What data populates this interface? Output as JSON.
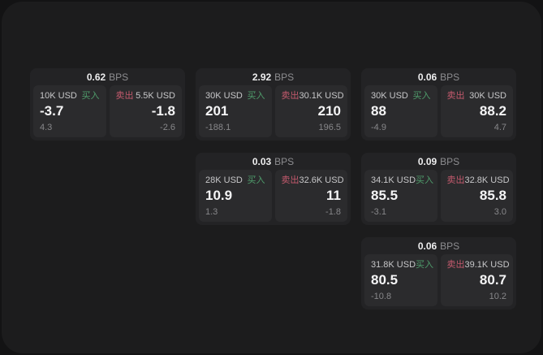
{
  "labels": {
    "bps_unit": "BPS",
    "buy": "买入",
    "sell": "卖出"
  },
  "colors": {
    "page_bg": "#131314",
    "panel_bg": "#1c1c1d",
    "card_bg": "#232325",
    "cell_bg": "#2b2b2d",
    "buy_green": "#4f9c6b",
    "sell_red": "#c45a6d"
  },
  "cards": [
    {
      "row": 1,
      "col": 1,
      "bps": "0.62",
      "buy": {
        "amount": "10K USD",
        "value": "-3.7",
        "sub": "4.3"
      },
      "sell": {
        "amount": "5.5K USD",
        "value": "-1.8",
        "sub": "-2.6"
      }
    },
    {
      "row": 1,
      "col": 2,
      "bps": "2.92",
      "buy": {
        "amount": "30K USD",
        "value": "201",
        "sub": "-188.1"
      },
      "sell": {
        "amount": "30.1K USD",
        "value": "210",
        "sub": "196.5"
      }
    },
    {
      "row": 1,
      "col": 3,
      "bps": "0.06",
      "buy": {
        "amount": "30K USD",
        "value": "88",
        "sub": "-4.9"
      },
      "sell": {
        "amount": "30K USD",
        "value": "88.2",
        "sub": "4.7"
      }
    },
    {
      "row": 2,
      "col": 2,
      "bps": "0.03",
      "buy": {
        "amount": "28K USD",
        "value": "10.9",
        "sub": "1.3"
      },
      "sell": {
        "amount": "32.6K USD",
        "value": "11",
        "sub": "-1.8"
      }
    },
    {
      "row": 2,
      "col": 3,
      "bps": "0.09",
      "buy": {
        "amount": "34.1K USD",
        "value": "85.5",
        "sub": "-3.1"
      },
      "sell": {
        "amount": "32.8K USD",
        "value": "85.8",
        "sub": "3.0"
      }
    },
    {
      "row": 3,
      "col": 3,
      "bps": "0.06",
      "buy": {
        "amount": "31.8K USD",
        "value": "80.5",
        "sub": "-10.8"
      },
      "sell": {
        "amount": "39.1K USD",
        "value": "80.7",
        "sub": "10.2"
      }
    }
  ]
}
